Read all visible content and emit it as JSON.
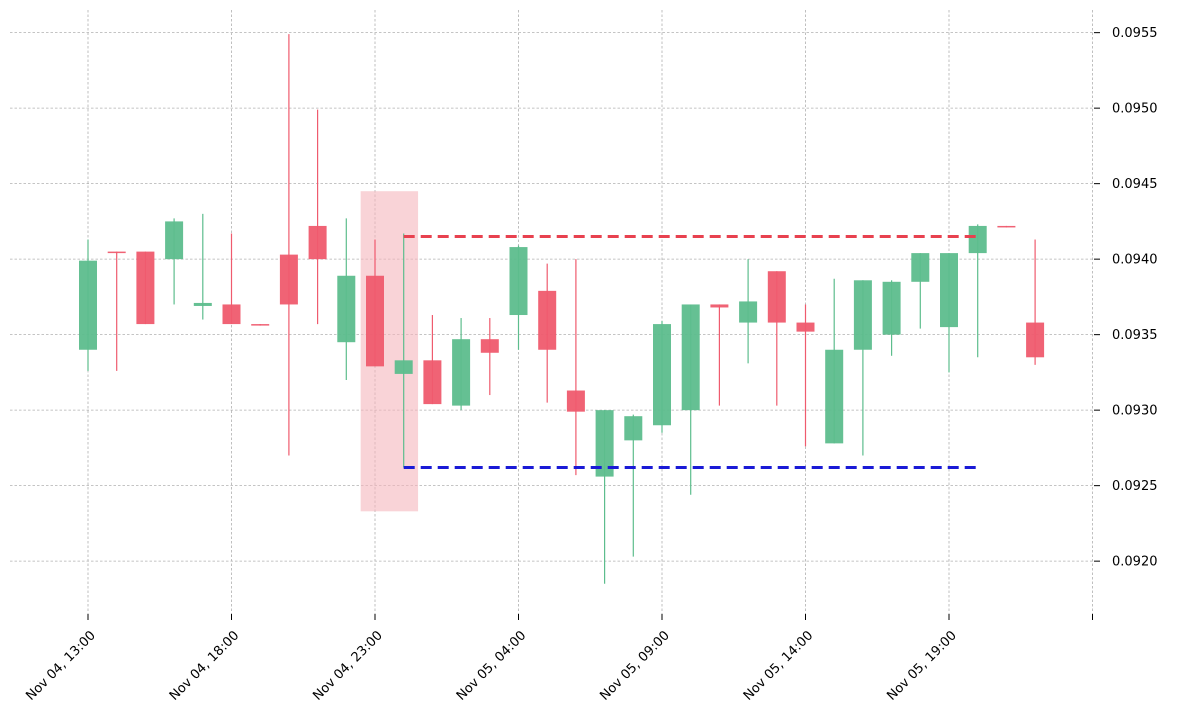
{
  "chart_data": {
    "type": "candlestick",
    "title": "",
    "xlabel": "",
    "ylabel": "",
    "grid": true,
    "ylim": [
      0.09165,
      0.09565
    ],
    "y_ticks": [
      0.092,
      0.0925,
      0.093,
      0.0935,
      0.094,
      0.0945,
      0.095,
      0.0955
    ],
    "y_tick_labels": [
      "0.0920",
      "0.0925",
      "0.0930",
      "0.0935",
      "0.0940",
      "0.0945",
      "0.0950",
      "0.0955"
    ],
    "x_ticks": [
      "Nov 04, 13:00",
      "Nov 04, 18:00",
      "Nov 04, 23:00",
      "Nov 05, 04:00",
      "Nov 05, 09:00",
      "Nov 05, 14:00",
      "Nov 05, 19:00"
    ],
    "x_range_hours": [
      -0.5,
      35.5
    ],
    "colors": {
      "up": "#5dbd8d",
      "down": "#ef5b6e",
      "highlight": "#f5b5bd",
      "resistance": "#e8414f",
      "support": "#1a1ad6"
    },
    "candles": [
      {
        "t": "Nov 04, 13:00",
        "o": 0.0934,
        "h": 0.09413,
        "l": 0.09326,
        "c": 0.09399
      },
      {
        "t": "Nov 04, 14:00",
        "o": 0.09405,
        "h": 0.09405,
        "l": 0.09326,
        "c": 0.09404
      },
      {
        "t": "Nov 04, 15:00",
        "o": 0.09405,
        "h": 0.09405,
        "l": 0.09357,
        "c": 0.09357
      },
      {
        "t": "Nov 04, 16:00",
        "o": 0.094,
        "h": 0.09427,
        "l": 0.0937,
        "c": 0.09425
      },
      {
        "t": "Nov 04, 17:00",
        "o": 0.09369,
        "h": 0.0943,
        "l": 0.0936,
        "c": 0.09371
      },
      {
        "t": "Nov 04, 18:00",
        "o": 0.0937,
        "h": 0.09417,
        "l": 0.09357,
        "c": 0.09357
      },
      {
        "t": "Nov 04, 19:00",
        "o": 0.09357,
        "h": 0.09357,
        "l": 0.09356,
        "c": 0.09356
      },
      {
        "t": "Nov 04, 20:00",
        "o": 0.09403,
        "h": 0.09549,
        "l": 0.0927,
        "c": 0.0937
      },
      {
        "t": "Nov 04, 21:00",
        "o": 0.09422,
        "h": 0.09499,
        "l": 0.09357,
        "c": 0.094
      },
      {
        "t": "Nov 04, 22:00",
        "o": 0.09345,
        "h": 0.09427,
        "l": 0.0932,
        "c": 0.09389
      },
      {
        "t": "Nov 04, 23:00",
        "o": 0.09389,
        "h": 0.09413,
        "l": 0.09329,
        "c": 0.09329
      },
      {
        "t": "Nov 05, 00:00",
        "o": 0.09324,
        "h": 0.09417,
        "l": 0.09262,
        "c": 0.09333
      },
      {
        "t": "Nov 05, 01:00",
        "o": 0.09333,
        "h": 0.09363,
        "l": 0.09304,
        "c": 0.09304
      },
      {
        "t": "Nov 05, 02:00",
        "o": 0.09303,
        "h": 0.09361,
        "l": 0.093,
        "c": 0.09347
      },
      {
        "t": "Nov 05, 03:00",
        "o": 0.09347,
        "h": 0.09361,
        "l": 0.0931,
        "c": 0.09338
      },
      {
        "t": "Nov 05, 04:00",
        "o": 0.09363,
        "h": 0.09409,
        "l": 0.0934,
        "c": 0.09408
      },
      {
        "t": "Nov 05, 05:00",
        "o": 0.09379,
        "h": 0.09397,
        "l": 0.09305,
        "c": 0.0934
      },
      {
        "t": "Nov 05, 06:00",
        "o": 0.09313,
        "h": 0.094,
        "l": 0.09257,
        "c": 0.09299
      },
      {
        "t": "Nov 05, 07:00",
        "o": 0.09256,
        "h": 0.093,
        "l": 0.09185,
        "c": 0.093
      },
      {
        "t": "Nov 05, 08:00",
        "o": 0.0928,
        "h": 0.09297,
        "l": 0.09203,
        "c": 0.09296
      },
      {
        "t": "Nov 05, 09:00",
        "o": 0.0929,
        "h": 0.09359,
        "l": 0.09285,
        "c": 0.09357
      },
      {
        "t": "Nov 05, 10:00",
        "o": 0.093,
        "h": 0.0937,
        "l": 0.09244,
        "c": 0.0937
      },
      {
        "t": "Nov 05, 11:00",
        "o": 0.0937,
        "h": 0.0937,
        "l": 0.09303,
        "c": 0.09368
      },
      {
        "t": "Nov 05, 12:00",
        "o": 0.09358,
        "h": 0.094,
        "l": 0.09331,
        "c": 0.09372
      },
      {
        "t": "Nov 05, 13:00",
        "o": 0.09392,
        "h": 0.09392,
        "l": 0.09303,
        "c": 0.09358
      },
      {
        "t": "Nov 05, 14:00",
        "o": 0.09358,
        "h": 0.0937,
        "l": 0.09276,
        "c": 0.09352
      },
      {
        "t": "Nov 05, 15:00",
        "o": 0.09278,
        "h": 0.09387,
        "l": 0.09278,
        "c": 0.0934
      },
      {
        "t": "Nov 05, 16:00",
        "o": 0.0934,
        "h": 0.09386,
        "l": 0.0927,
        "c": 0.09386
      },
      {
        "t": "Nov 05, 17:00",
        "o": 0.0935,
        "h": 0.09386,
        "l": 0.09336,
        "c": 0.09385
      },
      {
        "t": "Nov 05, 18:00",
        "o": 0.09385,
        "h": 0.09404,
        "l": 0.09354,
        "c": 0.09404
      },
      {
        "t": "Nov 05, 19:00",
        "o": 0.09355,
        "h": 0.09404,
        "l": 0.09325,
        "c": 0.09404
      },
      {
        "t": "Nov 05, 20:00",
        "o": 0.09404,
        "h": 0.09423,
        "l": 0.09335,
        "c": 0.09422
      },
      {
        "t": "Nov 05, 21:00",
        "o": 0.09422,
        "h": 0.09422,
        "l": 0.09421,
        "c": 0.09421
      },
      {
        "t": "Nov 05, 22:00",
        "o": 0.09358,
        "h": 0.09413,
        "l": 0.0933,
        "c": 0.09335
      }
    ],
    "highlight_range": {
      "start": "Nov 04, 23:00",
      "end": "Nov 05, 00:00",
      "ymin": 0.09233,
      "ymax": 0.09445
    },
    "resistance_level": {
      "value": 0.09415,
      "from": "Nov 05, 00:00",
      "to": "Nov 05, 20:00"
    },
    "support_level": {
      "value": 0.09262,
      "from": "Nov 05, 00:00",
      "to": "Nov 05, 20:00"
    }
  }
}
